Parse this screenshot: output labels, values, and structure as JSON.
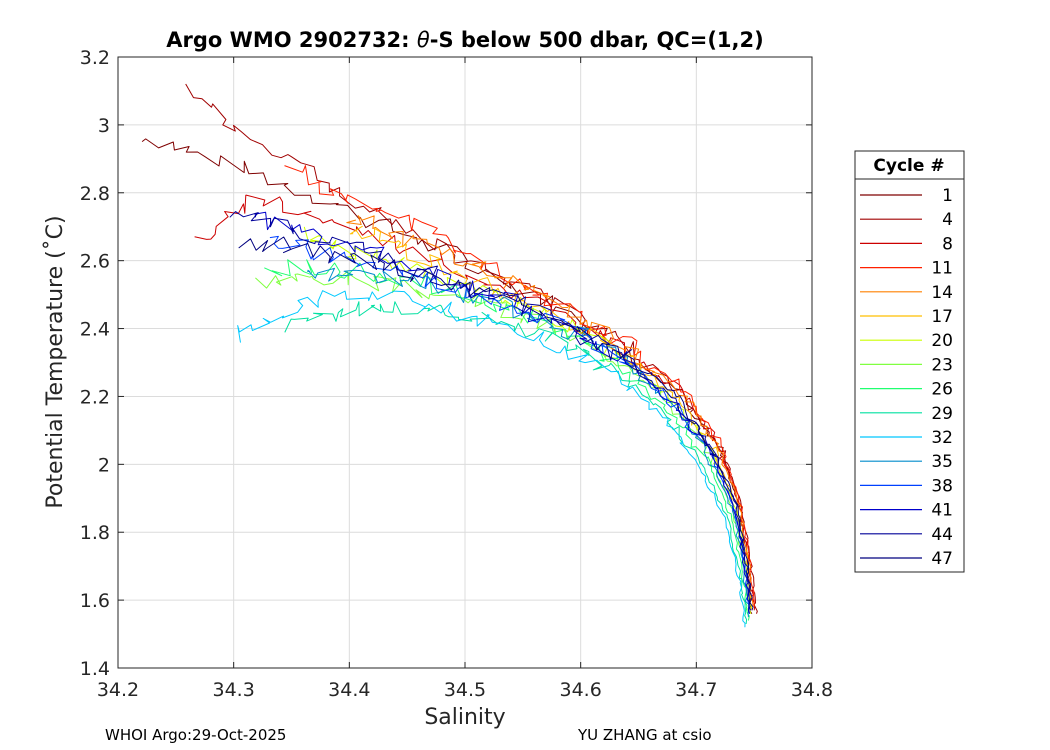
{
  "chart_data": {
    "type": "line",
    "title_prefix": "Argo WMO 2902732: ",
    "title_theta": "θ",
    "title_suffix": "-S below 500 dbar,  QC=(1,2)",
    "xlabel": "Salinity",
    "ylabel": "Potential Temperature (˚C)",
    "xlim": [
      34.2,
      34.8
    ],
    "ylim": [
      1.4,
      3.2
    ],
    "xticks": [
      "34.2",
      "34.3",
      "34.4",
      "34.5",
      "34.6",
      "34.7",
      "34.8"
    ],
    "yticks": [
      "1.4",
      "1.6",
      "1.8",
      "2",
      "2.2",
      "2.4",
      "2.6",
      "2.8",
      "3",
      "3.2"
    ],
    "grid": true,
    "legend": {
      "title": "Cycle #",
      "position": "outside-right",
      "entries": [
        "1",
        "4",
        "8",
        "11",
        "14",
        "17",
        "20",
        "23",
        "26",
        "29",
        "32",
        "35",
        "38",
        "41",
        "44",
        "47"
      ]
    },
    "series": [
      {
        "name": "1",
        "color": "#7f0000",
        "s": [
          34.22,
          34.31,
          34.4,
          34.48,
          34.56,
          34.63,
          34.69,
          34.72,
          34.738,
          34.745,
          34.748
        ],
        "theta": [
          2.97,
          2.87,
          2.75,
          2.63,
          2.5,
          2.36,
          2.2,
          2.04,
          1.87,
          1.7,
          1.56
        ]
      },
      {
        "name": "4",
        "color": "#a00000",
        "s": [
          34.26,
          34.33,
          34.41,
          34.49,
          34.57,
          34.64,
          34.69,
          34.725,
          34.74,
          34.747,
          34.752
        ],
        "theta": [
          3.1,
          2.93,
          2.76,
          2.62,
          2.48,
          2.35,
          2.2,
          2.03,
          1.86,
          1.7,
          1.56
        ]
      },
      {
        "name": "8",
        "color": "#cc0000",
        "s": [
          34.27,
          34.32,
          34.4,
          34.48,
          34.56,
          34.63,
          34.69,
          34.72,
          34.737,
          34.745,
          34.75
        ],
        "theta": [
          2.66,
          2.79,
          2.7,
          2.6,
          2.48,
          2.35,
          2.21,
          2.05,
          1.88,
          1.71,
          1.57
        ]
      },
      {
        "name": "11",
        "color": "#ff2000",
        "s": [
          34.35,
          34.4,
          34.46,
          34.52,
          34.58,
          34.64,
          34.69,
          34.72,
          34.738,
          34.746,
          34.75
        ],
        "theta": [
          2.88,
          2.78,
          2.7,
          2.59,
          2.48,
          2.36,
          2.22,
          2.06,
          1.89,
          1.72,
          1.58
        ]
      },
      {
        "name": "14",
        "color": "#ff8000",
        "s": [
          34.4,
          34.44,
          34.49,
          34.54,
          34.59,
          34.64,
          34.69,
          34.72,
          34.737,
          34.745,
          34.749
        ],
        "theta": [
          2.73,
          2.68,
          2.61,
          2.54,
          2.45,
          2.34,
          2.2,
          2.05,
          1.88,
          1.72,
          1.58
        ]
      },
      {
        "name": "17",
        "color": "#ffbf00",
        "s": [
          34.4,
          34.44,
          34.49,
          34.54,
          34.59,
          34.64,
          34.685,
          34.715,
          34.735,
          34.744,
          34.748
        ],
        "theta": [
          2.7,
          2.64,
          2.57,
          2.5,
          2.42,
          2.32,
          2.19,
          2.04,
          1.88,
          1.71,
          1.57
        ]
      },
      {
        "name": "20",
        "color": "#ccff00",
        "s": [
          34.36,
          34.41,
          34.47,
          34.53,
          34.59,
          34.64,
          34.685,
          34.715,
          34.734,
          34.743,
          34.747
        ],
        "theta": [
          2.68,
          2.62,
          2.56,
          2.49,
          2.41,
          2.31,
          2.18,
          2.03,
          1.87,
          1.7,
          1.56
        ]
      },
      {
        "name": "23",
        "color": "#80ff40",
        "s": [
          34.32,
          34.38,
          34.45,
          34.52,
          34.58,
          34.64,
          34.68,
          34.712,
          34.732,
          34.742,
          34.746
        ],
        "theta": [
          2.54,
          2.55,
          2.52,
          2.47,
          2.39,
          2.3,
          2.17,
          2.02,
          1.86,
          1.7,
          1.56
        ]
      },
      {
        "name": "26",
        "color": "#20ff70",
        "s": [
          34.33,
          34.39,
          34.45,
          34.52,
          34.58,
          34.63,
          34.675,
          34.71,
          34.73,
          34.74,
          34.745
        ],
        "theta": [
          2.58,
          2.58,
          2.54,
          2.48,
          2.4,
          2.3,
          2.16,
          2.01,
          1.85,
          1.68,
          1.54
        ]
      },
      {
        "name": "29",
        "color": "#00e0a0",
        "s": [
          34.35,
          34.4,
          34.46,
          34.52,
          34.58,
          34.63,
          34.672,
          34.705,
          34.727,
          34.738,
          34.743
        ],
        "theta": [
          2.4,
          2.46,
          2.46,
          2.43,
          2.37,
          2.28,
          2.15,
          2.0,
          1.84,
          1.67,
          1.53
        ]
      },
      {
        "name": "32",
        "color": "#00c8ff",
        "s": [
          34.3,
          34.36,
          34.43,
          34.5,
          34.57,
          34.63,
          34.67,
          34.703,
          34.726,
          34.737,
          34.742
        ],
        "theta": [
          2.38,
          2.48,
          2.5,
          2.44,
          2.37,
          2.27,
          2.14,
          1.99,
          1.83,
          1.66,
          1.52
        ]
      },
      {
        "name": "35",
        "color": "#008ccc",
        "s": [
          34.36,
          34.41,
          34.47,
          34.53,
          34.59,
          34.64,
          34.68,
          34.712,
          34.732,
          34.741,
          34.745
        ],
        "theta": [
          2.55,
          2.56,
          2.53,
          2.47,
          2.4,
          2.3,
          2.17,
          2.02,
          1.86,
          1.69,
          1.55
        ]
      },
      {
        "name": "38",
        "color": "#0040ff",
        "s": [
          34.33,
          34.38,
          34.44,
          34.51,
          34.58,
          34.64,
          34.68,
          34.713,
          34.733,
          34.742,
          34.746
        ],
        "theta": [
          2.66,
          2.62,
          2.57,
          2.5,
          2.42,
          2.31,
          2.18,
          2.03,
          1.87,
          1.7,
          1.56
        ]
      },
      {
        "name": "41",
        "color": "#0000cc",
        "s": [
          34.32,
          34.38,
          34.44,
          34.51,
          34.57,
          34.63,
          34.68,
          34.713,
          34.733,
          34.742,
          34.746
        ],
        "theta": [
          2.73,
          2.67,
          2.6,
          2.52,
          2.43,
          2.32,
          2.19,
          2.04,
          1.87,
          1.7,
          1.56
        ]
      },
      {
        "name": "44",
        "color": "#000099",
        "s": [
          34.3,
          34.36,
          34.43,
          34.5,
          34.57,
          34.63,
          34.68,
          34.714,
          34.734,
          34.743,
          34.747
        ],
        "theta": [
          2.74,
          2.68,
          2.61,
          2.53,
          2.44,
          2.33,
          2.19,
          2.04,
          1.88,
          1.71,
          1.57
        ]
      },
      {
        "name": "47",
        "color": "#00007f",
        "s": [
          34.31,
          34.37,
          34.44,
          34.51,
          34.58,
          34.64,
          34.685,
          34.715,
          34.735,
          34.744,
          34.748
        ],
        "theta": [
          2.66,
          2.63,
          2.58,
          2.51,
          2.43,
          2.32,
          2.19,
          2.04,
          1.88,
          1.71,
          1.57
        ]
      }
    ]
  },
  "footer": {
    "left": "WHOI Argo:29-Oct-2025",
    "right": "YU ZHANG at csio"
  }
}
